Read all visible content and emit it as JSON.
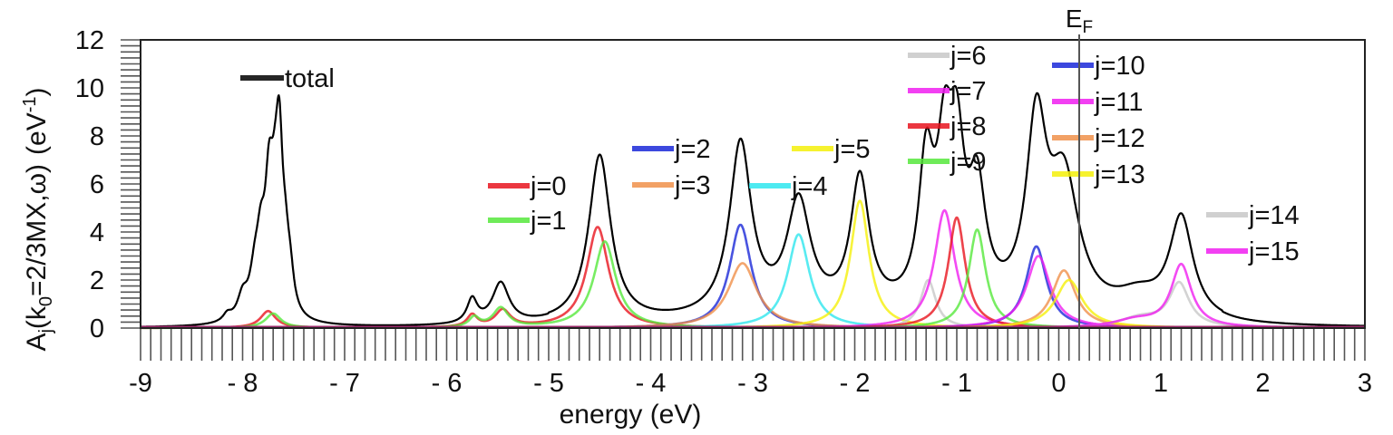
{
  "chart_data": {
    "type": "line",
    "xlabel": "energy (eV)",
    "ylabel": {
      "base": "A",
      "base_sub": "j",
      "paren_open": "(k",
      "k_sub": "0",
      "paren_rest": "=2/3MX,ω)",
      "unit_open": "(eV",
      "unit_sup": "-1",
      "unit_close": ")"
    },
    "xlim": [
      -9,
      3
    ],
    "ylim": [
      0,
      12
    ],
    "xticks": [
      -9,
      -8,
      -7,
      -6,
      -5,
      -4,
      -3,
      -2,
      -1,
      0,
      1,
      2,
      3
    ],
    "xtick_labels": [
      "-9",
      "- 8",
      "- 7",
      "- 6",
      "- 5",
      "- 4",
      "- 3",
      "- 2",
      "- 1",
      "0",
      "1",
      "2",
      "3"
    ],
    "yticks": [
      0,
      2,
      4,
      6,
      8,
      10,
      12
    ],
    "ytick_labels": [
      "0",
      "2",
      "4",
      "6",
      "8",
      "10",
      "12"
    ],
    "fermi_level": {
      "x": 0.2,
      "label": "E",
      "label_sub": "F"
    },
    "total": {
      "name": "total",
      "color": "#000000"
    },
    "series": [
      {
        "name": "j=0",
        "color": "#e8141e",
        "peaks": [
          [
            -7.75,
            0.09,
            0.7
          ],
          [
            -5.75,
            0.06,
            0.5
          ],
          [
            -5.45,
            0.09,
            0.7
          ],
          [
            -4.52,
            0.13,
            4.2
          ]
        ]
      },
      {
        "name": "j=1",
        "color": "#56e83c",
        "peaks": [
          [
            -7.7,
            0.09,
            0.6
          ],
          [
            -5.73,
            0.06,
            0.4
          ],
          [
            -5.47,
            0.09,
            0.8
          ],
          [
            -4.45,
            0.13,
            3.6
          ]
        ]
      },
      {
        "name": "j=2",
        "color": "#1a28d8",
        "peaks": [
          [
            -3.12,
            0.13,
            4.3
          ]
        ]
      },
      {
        "name": "j=3",
        "color": "#f0904a",
        "peaks": [
          [
            -3.1,
            0.17,
            2.7
          ]
        ]
      },
      {
        "name": "j=4",
        "color": "#2ee6ee",
        "peaks": [
          [
            -2.55,
            0.13,
            3.9
          ]
        ]
      },
      {
        "name": "j=5",
        "color": "#f5f00a",
        "peaks": [
          [
            -1.95,
            0.11,
            5.3
          ]
        ]
      },
      {
        "name": "j=6",
        "color": "#c8c8c8",
        "peaks": [
          [
            -1.28,
            0.09,
            2.0
          ]
        ]
      },
      {
        "name": "j=7",
        "color": "#f01ef0",
        "peaks": [
          [
            -1.12,
            0.12,
            4.9
          ]
        ]
      },
      {
        "name": "j=8",
        "color": "#e8141e",
        "peaks": [
          [
            -1.0,
            0.1,
            4.6
          ]
        ]
      },
      {
        "name": "j=9",
        "color": "#56e83c",
        "peaks": [
          [
            -0.8,
            0.1,
            4.1
          ]
        ]
      },
      {
        "name": "j=10",
        "color": "#1a28d8",
        "peaks": [
          [
            -0.22,
            0.12,
            3.4
          ]
        ]
      },
      {
        "name": "j=11",
        "color": "#f01ef0",
        "peaks": [
          [
            -0.2,
            0.14,
            3.0
          ]
        ]
      },
      {
        "name": "j=12",
        "color": "#f0904a",
        "peaks": [
          [
            0.05,
            0.14,
            2.4
          ]
        ]
      },
      {
        "name": "j=13",
        "color": "#f5f00a",
        "peaks": [
          [
            0.1,
            0.16,
            2.0
          ]
        ]
      },
      {
        "name": "j=14",
        "color": "#c8c8c8",
        "peaks": [
          [
            0.8,
            0.25,
            0.4
          ],
          [
            1.18,
            0.12,
            1.8
          ]
        ]
      },
      {
        "name": "j=15",
        "color": "#f01ef0",
        "peaks": [
          [
            0.75,
            0.25,
            0.3
          ],
          [
            1.2,
            0.12,
            2.6
          ]
        ]
      }
    ],
    "total_peaks": [
      [
        -8.15,
        0.05,
        0.3
      ],
      [
        -8.0,
        0.06,
        0.9
      ],
      [
        -7.88,
        0.06,
        1.6
      ],
      [
        -7.82,
        0.05,
        2.3
      ],
      [
        -7.74,
        0.05,
        4.6
      ],
      [
        -7.68,
        0.05,
        3.0
      ],
      [
        -7.64,
        0.04,
        5.5
      ],
      [
        -7.58,
        0.05,
        2.2
      ],
      [
        -7.53,
        0.04,
        1.0
      ],
      [
        -5.75,
        0.06,
        1.0
      ],
      [
        -5.47,
        0.1,
        1.7
      ],
      [
        -4.5,
        0.13,
        7.0
      ],
      [
        -3.12,
        0.13,
        7.2
      ],
      [
        -2.55,
        0.14,
        4.6
      ],
      [
        -1.95,
        0.11,
        5.5
      ],
      [
        -1.3,
        0.09,
        5.7
      ],
      [
        -1.12,
        0.09,
        5.6
      ],
      [
        -1.0,
        0.09,
        5.7
      ],
      [
        -0.8,
        0.1,
        4.6
      ],
      [
        -0.22,
        0.12,
        7.4
      ],
      [
        0.05,
        0.18,
        5.4
      ],
      [
        0.78,
        0.28,
        0.9
      ],
      [
        1.2,
        0.14,
        4.2
      ]
    ],
    "total_background": 0.35,
    "legend": {
      "total": "total",
      "groups": [
        [
          "j=0",
          "j=1"
        ],
        [
          "j=2",
          "j=3"
        ],
        [
          "j=4"
        ],
        [
          "j=5"
        ],
        [
          "j=6",
          "j=7",
          "j=8",
          "j=9"
        ],
        [
          "j=10",
          "j=11",
          "j=12",
          "j=13"
        ],
        [
          "j=14",
          "j=15"
        ]
      ]
    }
  }
}
